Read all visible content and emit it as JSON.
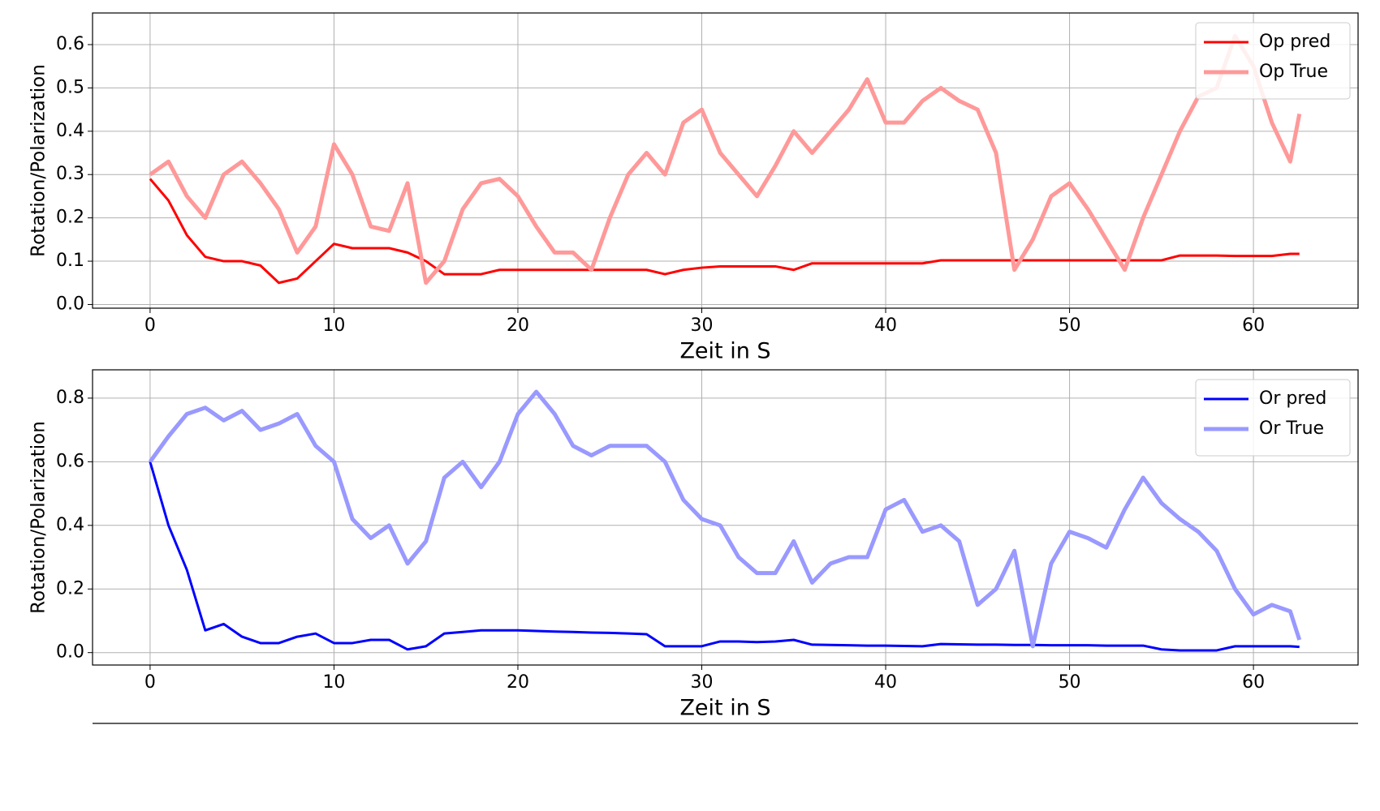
{
  "chart_data": [
    {
      "type": "line",
      "xlabel": "Zeit in S",
      "ylabel": "Rotation/Polarization",
      "x": [
        0,
        1,
        2,
        3,
        4,
        5,
        6,
        7,
        8,
        9,
        10,
        11,
        12,
        13,
        14,
        15,
        16,
        17,
        18,
        19,
        20,
        21,
        22,
        23,
        24,
        25,
        26,
        27,
        28,
        29,
        30,
        31,
        32,
        33,
        34,
        35,
        36,
        37,
        38,
        39,
        40,
        41,
        42,
        43,
        44,
        45,
        46,
        47,
        48,
        49,
        50,
        51,
        52,
        53,
        54,
        55,
        56,
        57,
        58,
        59,
        60,
        61,
        62,
        62.5
      ],
      "series": [
        {
          "name": "Op pred",
          "color": "#ff0000",
          "width": 3,
          "values": [
            0.29,
            0.24,
            0.16,
            0.11,
            0.1,
            0.1,
            0.09,
            0.05,
            0.06,
            0.1,
            0.14,
            0.13,
            0.13,
            0.13,
            0.12,
            0.1,
            0.07,
            0.07,
            0.07,
            0.08,
            0.08,
            0.08,
            0.08,
            0.08,
            0.08,
            0.08,
            0.08,
            0.08,
            0.07,
            0.08,
            0.085,
            0.088,
            0.088,
            0.088,
            0.088,
            0.08,
            0.095,
            0.095,
            0.095,
            0.095,
            0.095,
            0.095,
            0.095,
            0.102,
            0.102,
            0.102,
            0.102,
            0.102,
            0.102,
            0.102,
            0.102,
            0.102,
            0.102,
            0.102,
            0.102,
            0.102,
            0.113,
            0.113,
            0.113,
            0.112,
            0.112,
            0.112,
            0.117,
            0.117
          ]
        },
        {
          "name": "Op True",
          "color": "#ff9999",
          "width": 5,
          "values": [
            0.3,
            0.33,
            0.25,
            0.2,
            0.3,
            0.33,
            0.28,
            0.22,
            0.12,
            0.18,
            0.37,
            0.3,
            0.18,
            0.17,
            0.28,
            0.05,
            0.1,
            0.22,
            0.28,
            0.29,
            0.25,
            0.18,
            0.12,
            0.12,
            0.08,
            0.2,
            0.3,
            0.35,
            0.3,
            0.42,
            0.45,
            0.35,
            0.3,
            0.25,
            0.32,
            0.4,
            0.35,
            0.4,
            0.45,
            0.52,
            0.42,
            0.42,
            0.47,
            0.5,
            0.47,
            0.45,
            0.35,
            0.08,
            0.15,
            0.25,
            0.28,
            0.22,
            0.15,
            0.08,
            0.2,
            0.3,
            0.4,
            0.48,
            0.5,
            0.62,
            0.55,
            0.42,
            0.33,
            0.44
          ]
        }
      ],
      "xlim": [
        -3.13,
        65.69
      ],
      "ylim": [
        -0.0085,
        0.673
      ],
      "xticks": [
        0,
        10,
        20,
        30,
        40,
        50,
        60
      ],
      "yticks": [
        {
          "value": 0,
          "label": "0.0"
        },
        0.1,
        0.2,
        0.3,
        0.4,
        0.5,
        0.6
      ],
      "grid": true,
      "legend": "upper right"
    },
    {
      "type": "line",
      "xlabel": "Zeit in S",
      "ylabel": "Rotation/Polarization",
      "x": [
        0,
        1,
        2,
        3,
        4,
        5,
        6,
        7,
        8,
        9,
        10,
        11,
        12,
        13,
        14,
        15,
        16,
        17,
        18,
        19,
        20,
        21,
        22,
        23,
        24,
        25,
        26,
        27,
        28,
        29,
        30,
        31,
        32,
        33,
        34,
        35,
        36,
        37,
        38,
        39,
        40,
        41,
        42,
        43,
        44,
        45,
        46,
        47,
        48,
        49,
        50,
        51,
        52,
        53,
        54,
        55,
        56,
        57,
        58,
        59,
        60,
        61,
        62,
        62.5
      ],
      "series": [
        {
          "name": "Or pred",
          "color": "#0000ff",
          "width": 3,
          "values": [
            0.6,
            0.4,
            0.26,
            0.07,
            0.09,
            0.05,
            0.03,
            0.03,
            0.05,
            0.06,
            0.03,
            0.03,
            0.04,
            0.04,
            0.01,
            0.02,
            0.06,
            0.065,
            0.07,
            0.07,
            0.07,
            0.068,
            0.066,
            0.065,
            0.063,
            0.062,
            0.06,
            0.058,
            0.02,
            0.02,
            0.02,
            0.035,
            0.035,
            0.033,
            0.035,
            0.04,
            0.025,
            0.024,
            0.023,
            0.022,
            0.022,
            0.021,
            0.02,
            0.027,
            0.026,
            0.025,
            0.025,
            0.024,
            0.024,
            0.023,
            0.023,
            0.023,
            0.022,
            0.022,
            0.022,
            0.01,
            0.007,
            0.007,
            0.007,
            0.02,
            0.02,
            0.02,
            0.02,
            0.018
          ]
        },
        {
          "name": "Or True",
          "color": "#9999ff",
          "width": 5,
          "values": [
            0.6,
            0.68,
            0.75,
            0.77,
            0.73,
            0.76,
            0.7,
            0.72,
            0.75,
            0.65,
            0.6,
            0.42,
            0.36,
            0.4,
            0.28,
            0.35,
            0.55,
            0.6,
            0.52,
            0.6,
            0.75,
            0.82,
            0.75,
            0.65,
            0.62,
            0.65,
            0.65,
            0.65,
            0.6,
            0.48,
            0.42,
            0.4,
            0.3,
            0.25,
            0.25,
            0.35,
            0.22,
            0.28,
            0.3,
            0.3,
            0.45,
            0.48,
            0.38,
            0.4,
            0.35,
            0.15,
            0.2,
            0.32,
            0.02,
            0.28,
            0.38,
            0.36,
            0.33,
            0.45,
            0.55,
            0.47,
            0.42,
            0.38,
            0.32,
            0.2,
            0.12,
            0.15,
            0.13,
            0.04
          ]
        }
      ],
      "xlim": [
        -3.13,
        65.69
      ],
      "ylim": [
        -0.039,
        0.889
      ],
      "xticks": [
        0,
        10,
        20,
        30,
        40,
        50,
        60
      ],
      "yticks": [
        {
          "value": 0,
          "label": "0.0"
        },
        0.2,
        0.4,
        0.6,
        0.8
      ],
      "grid": true,
      "legend": "upper right"
    }
  ]
}
